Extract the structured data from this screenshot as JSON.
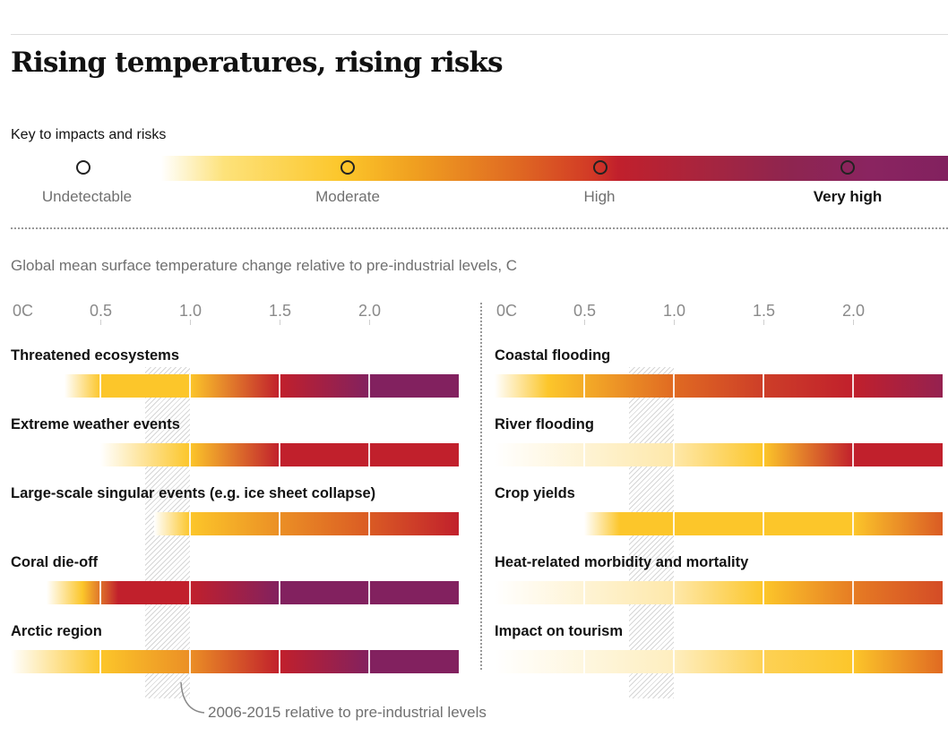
{
  "title": "Rising temperatures, rising risks",
  "key": {
    "title": "Key to impacts and risks",
    "levels": [
      {
        "label": "Undetectable",
        "bold": false
      },
      {
        "label": "Moderate",
        "bold": false
      },
      {
        "label": "High",
        "bold": false
      },
      {
        "label": "Very high",
        "bold": true
      }
    ]
  },
  "subtitle": "Global mean surface temperature change relative to pre-industrial levels, C",
  "annotation": "2006-2015 relative to pre-industrial levels",
  "colors": {
    "undetectable": "#ffffff",
    "moderate": "#fcc62a",
    "moderate_high": "#e06a22",
    "high": "#c1202c",
    "very_high": "#82215f"
  },
  "chart_data": {
    "type": "heatmap",
    "x_tick_labels": [
      "0C",
      "0.5",
      "1.0",
      "1.5",
      "2.0"
    ],
    "x_ticks": [
      0,
      0.5,
      1.0,
      1.5,
      2.0
    ],
    "xlim": [
      0,
      2.5
    ],
    "observed_warming_band": [
      0.75,
      1.0
    ],
    "risk_scale": {
      "undetectable": 0,
      "moderate": 1,
      "high": 2,
      "very_high": 3
    },
    "panels": [
      {
        "categories": [
          {
            "name": "Threatened ecosystems",
            "stops": [
              [
                0.3,
                0
              ],
              [
                0.5,
                1
              ],
              [
                1.0,
                1
              ],
              [
                1.5,
                2
              ],
              [
                2.0,
                3
              ],
              [
                2.5,
                3
              ]
            ]
          },
          {
            "name": "Extreme weather events",
            "stops": [
              [
                0.5,
                0
              ],
              [
                1.0,
                1
              ],
              [
                1.5,
                2
              ],
              [
                2.5,
                2
              ]
            ]
          },
          {
            "name": "Large-scale singular events (e.g. ice sheet collapse)",
            "stops": [
              [
                0.8,
                0
              ],
              [
                1.0,
                1
              ],
              [
                1.5,
                1.3
              ],
              [
                2.0,
                1.6
              ],
              [
                2.5,
                2
              ]
            ]
          },
          {
            "name": "Coral die-off",
            "stops": [
              [
                0.2,
                0
              ],
              [
                0.4,
                1
              ],
              [
                0.6,
                2
              ],
              [
                1.0,
                2
              ],
              [
                1.5,
                3
              ],
              [
                2.5,
                3
              ]
            ]
          },
          {
            "name": "Arctic region",
            "stops": [
              [
                0.0,
                0
              ],
              [
                0.5,
                1
              ],
              [
                1.0,
                1.3
              ],
              [
                1.5,
                2
              ],
              [
                2.0,
                3
              ],
              [
                2.5,
                3
              ]
            ]
          }
        ]
      },
      {
        "categories": [
          {
            "name": "Coastal flooding",
            "stops": [
              [
                0.0,
                0
              ],
              [
                0.3,
                1
              ],
              [
                1.0,
                1.5
              ],
              [
                1.5,
                1.8
              ],
              [
                2.0,
                2
              ],
              [
                2.5,
                2.7
              ]
            ]
          },
          {
            "name": "River flooding",
            "stops": [
              [
                0.0,
                0
              ],
              [
                1.0,
                0.4
              ],
              [
                1.5,
                1
              ],
              [
                2.0,
                2
              ],
              [
                2.5,
                2
              ]
            ]
          },
          {
            "name": "Crop yields",
            "stops": [
              [
                0.5,
                0
              ],
              [
                0.7,
                1
              ],
              [
                2.0,
                1
              ],
              [
                2.5,
                1.6
              ]
            ]
          },
          {
            "name": "Heat-related morbidity and mortality",
            "stops": [
              [
                0.0,
                0
              ],
              [
                1.0,
                0.4
              ],
              [
                1.5,
                1
              ],
              [
                2.0,
                1.4
              ],
              [
                2.5,
                1.7
              ]
            ]
          },
          {
            "name": "Impact on tourism",
            "stops": [
              [
                0.0,
                0
              ],
              [
                1.0,
                0.3
              ],
              [
                1.5,
                0.8
              ],
              [
                2.0,
                1
              ],
              [
                2.5,
                1.5
              ]
            ]
          }
        ]
      }
    ]
  }
}
